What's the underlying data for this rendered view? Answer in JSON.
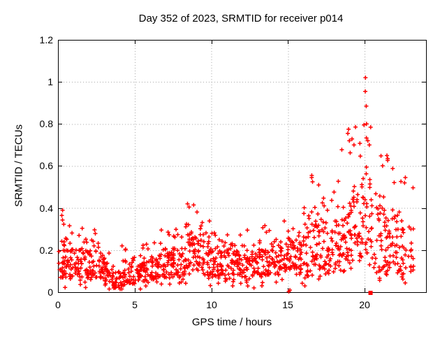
{
  "page": {
    "background": "#ffffff"
  },
  "chart_data": {
    "type": "scatter",
    "title": "Day 352 of 2023, SRMTID for receiver p014",
    "xlabel": "GPS time / hours",
    "ylabel": "SRMTID / TECUs",
    "xlim": [
      0,
      24
    ],
    "ylim": [
      0,
      1.2
    ],
    "xticks": {
      "values": [
        0,
        5,
        10,
        15,
        20
      ],
      "labels": [
        "0",
        "5",
        "10",
        "15",
        "20"
      ]
    },
    "yticks": {
      "values": [
        0,
        0.2,
        0.4,
        0.6,
        0.8,
        1.0,
        1.2
      ],
      "labels": [
        "0",
        "0.2",
        "0.4",
        "0.6",
        "0.8",
        "1",
        "1.2"
      ]
    },
    "grid": {
      "show": true,
      "color": "#a8a8a8",
      "style": "dotted"
    },
    "legend": "none",
    "border_color": "#000000",
    "marker": {
      "shape": "plus",
      "color": "#ff0000",
      "size": 6,
      "stroke_width": 1.5
    },
    "seed": 2023352,
    "bins_comment": "each bin = [x_start_hours, x_end_hours, n_points, band_low_TECUs, band_high_TECUs, spike_max_TECUs] estimated from the plotted point cloud",
    "bins": [
      [
        0.0,
        0.5,
        30,
        0.07,
        0.2,
        0.39
      ],
      [
        0.5,
        1.0,
        30,
        0.07,
        0.2,
        0.33
      ],
      [
        1.0,
        1.5,
        28,
        0.08,
        0.2,
        0.28
      ],
      [
        1.5,
        2.0,
        30,
        0.07,
        0.22,
        0.31
      ],
      [
        2.0,
        2.5,
        28,
        0.06,
        0.2,
        0.33
      ],
      [
        2.5,
        3.0,
        26,
        0.06,
        0.17,
        0.25
      ],
      [
        3.0,
        3.5,
        26,
        0.04,
        0.14,
        0.22
      ],
      [
        3.5,
        4.0,
        28,
        0.02,
        0.1,
        0.16
      ],
      [
        4.0,
        4.5,
        26,
        0.03,
        0.11,
        0.23
      ],
      [
        4.5,
        5.0,
        26,
        0.04,
        0.12,
        0.18
      ],
      [
        5.0,
        5.5,
        26,
        0.05,
        0.13,
        0.2
      ],
      [
        5.5,
        6.0,
        26,
        0.05,
        0.15,
        0.25
      ],
      [
        6.0,
        6.5,
        26,
        0.06,
        0.16,
        0.3
      ],
      [
        6.5,
        7.0,
        26,
        0.07,
        0.18,
        0.3
      ],
      [
        7.0,
        7.5,
        28,
        0.07,
        0.2,
        0.35
      ],
      [
        7.5,
        8.0,
        28,
        0.08,
        0.22,
        0.33
      ],
      [
        8.0,
        8.5,
        28,
        0.08,
        0.24,
        0.42
      ],
      [
        8.5,
        9.0,
        30,
        0.1,
        0.28,
        0.42
      ],
      [
        9.0,
        9.5,
        30,
        0.1,
        0.28,
        0.4
      ],
      [
        9.5,
        10.0,
        28,
        0.08,
        0.24,
        0.35
      ],
      [
        10.0,
        10.5,
        28,
        0.08,
        0.22,
        0.3
      ],
      [
        10.5,
        11.0,
        28,
        0.08,
        0.2,
        0.28
      ],
      [
        11.0,
        11.5,
        28,
        0.07,
        0.2,
        0.32
      ],
      [
        11.5,
        12.0,
        28,
        0.07,
        0.2,
        0.3
      ],
      [
        12.0,
        12.5,
        28,
        0.07,
        0.2,
        0.33
      ],
      [
        12.5,
        13.0,
        26,
        0.07,
        0.18,
        0.25
      ],
      [
        13.0,
        13.5,
        28,
        0.08,
        0.2,
        0.34
      ],
      [
        13.5,
        14.0,
        26,
        0.08,
        0.2,
        0.3
      ],
      [
        14.0,
        14.5,
        26,
        0.08,
        0.2,
        0.28
      ],
      [
        14.5,
        15.0,
        26,
        0.1,
        0.24,
        0.34
      ],
      [
        15.0,
        15.5,
        30,
        0.1,
        0.28,
        0.36
      ],
      [
        15.5,
        16.0,
        26,
        0.08,
        0.24,
        0.3
      ],
      [
        16.0,
        16.5,
        28,
        0.06,
        0.3,
        0.46
      ],
      [
        16.5,
        17.0,
        30,
        0.12,
        0.34,
        0.56
      ],
      [
        17.0,
        17.5,
        28,
        0.1,
        0.34,
        0.55
      ],
      [
        17.5,
        18.0,
        26,
        0.08,
        0.3,
        0.5
      ],
      [
        18.0,
        18.5,
        28,
        0.1,
        0.36,
        0.55
      ],
      [
        18.5,
        19.0,
        30,
        0.14,
        0.4,
        0.68
      ],
      [
        19.0,
        19.5,
        30,
        0.15,
        0.45,
        0.78
      ],
      [
        19.5,
        20.0,
        28,
        0.15,
        0.5,
        0.8
      ],
      [
        20.0,
        20.5,
        30,
        0.18,
        0.55,
        0.8
      ],
      [
        20.6,
        21.1,
        26,
        0.08,
        0.45,
        0.65
      ],
      [
        21.1,
        21.5,
        24,
        0.08,
        0.4,
        0.65
      ],
      [
        21.5,
        22.0,
        26,
        0.08,
        0.38,
        0.6
      ],
      [
        22.0,
        22.5,
        28,
        0.08,
        0.36,
        0.55
      ],
      [
        22.5,
        23.2,
        24,
        0.08,
        0.32,
        0.5
      ]
    ],
    "outliers": [
      [
        20.05,
        1.02
      ],
      [
        20.04,
        0.955
      ],
      [
        20.1,
        0.885
      ],
      [
        19.95,
        0.795
      ],
      [
        20.12,
        0.8
      ],
      [
        18.95,
        0.775
      ],
      [
        19.4,
        0.785
      ],
      [
        18.9,
        0.755
      ],
      [
        19.0,
        0.72
      ],
      [
        19.3,
        0.7
      ],
      [
        20.2,
        0.72
      ],
      [
        20.3,
        0.7
      ],
      [
        21.45,
        0.65
      ],
      [
        21.5,
        0.635
      ],
      [
        22.65,
        0.545
      ],
      [
        22.6,
        0.52
      ],
      [
        16.55,
        0.555
      ],
      [
        16.6,
        0.525
      ],
      [
        17.0,
        0.51
      ],
      [
        0.3,
        0.39
      ],
      [
        0.25,
        0.365
      ],
      [
        8.45,
        0.42
      ],
      [
        8.55,
        0.405
      ],
      [
        8.85,
        0.415
      ],
      [
        15.05,
        0.003
      ],
      [
        15.12,
        0.01
      ],
      [
        16.1,
        0.03
      ]
    ],
    "square_marker": {
      "x": 20.38,
      "y": 0.0,
      "color": "#ff0000",
      "size": 6
    }
  }
}
